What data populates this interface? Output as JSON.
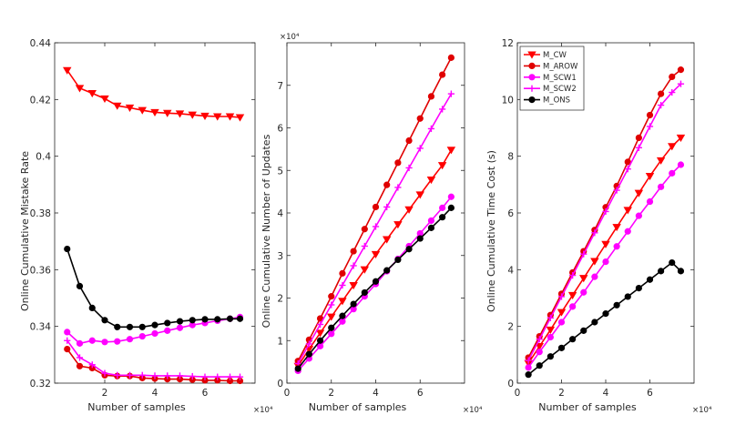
{
  "chart_data": [
    {
      "type": "line",
      "title": "",
      "xlabel": "Number of samples",
      "ylabel": "Online Cumulative Mistake Rate",
      "x_multiplier": "×10⁴",
      "y_multiplier": "",
      "xlim": [
        0,
        8
      ],
      "ylim": [
        0.32,
        0.44
      ],
      "xticks": [
        "2",
        "4",
        "6"
      ],
      "yticks": [
        "0.32",
        "0.34",
        "0.36",
        "0.38",
        "0.4",
        "0.42",
        "0.44"
      ],
      "x": [
        0.5,
        1.0,
        1.5,
        2.0,
        2.5,
        3.0,
        3.5,
        4.0,
        4.5,
        5.0,
        5.5,
        6.0,
        6.5,
        7.0,
        7.4
      ],
      "series": [
        {
          "name": "M_CW",
          "color": "#ff0000",
          "marker": "triangle-down",
          "values": [
            0.4303,
            0.424,
            0.4222,
            0.4203,
            0.4178,
            0.4171,
            0.4162,
            0.4155,
            0.4152,
            0.415,
            0.4146,
            0.4142,
            0.414,
            0.414,
            0.4137
          ]
        },
        {
          "name": "M_AROW",
          "color": "#e00000",
          "marker": "circle",
          "values": [
            0.332,
            0.326,
            0.3253,
            0.3228,
            0.3225,
            0.3225,
            0.3218,
            0.3216,
            0.3214,
            0.3214,
            0.3212,
            0.321,
            0.321,
            0.3208,
            0.3208
          ]
        },
        {
          "name": "M_SCW1",
          "color": "#ff00ff",
          "marker": "circle",
          "values": [
            0.338,
            0.334,
            0.335,
            0.3345,
            0.3347,
            0.3355,
            0.3365,
            0.3375,
            0.3385,
            0.3395,
            0.3405,
            0.3412,
            0.342,
            0.3427,
            0.3433
          ]
        },
        {
          "name": "M_SCW2",
          "color": "#ff00ff",
          "marker": "plus",
          "values": [
            0.335,
            0.329,
            0.3265,
            0.3235,
            0.3228,
            0.3228,
            0.3228,
            0.3226,
            0.3226,
            0.3226,
            0.3224,
            0.3222,
            0.3222,
            0.3222,
            0.3222
          ]
        },
        {
          "name": "M_ONS",
          "color": "#000000",
          "marker": "circle",
          "values": [
            0.3673,
            0.3542,
            0.3465,
            0.3422,
            0.3398,
            0.3398,
            0.3398,
            0.3405,
            0.3412,
            0.3418,
            0.3422,
            0.3425,
            0.3425,
            0.3427,
            0.3427
          ]
        }
      ],
      "legend": "none"
    },
    {
      "type": "line",
      "title": "",
      "xlabel": "Number of samples",
      "ylabel": "Online Cumulative Number of Updates",
      "x_multiplier": "×10⁴",
      "y_multiplier": "×10⁴",
      "xlim": [
        0,
        8
      ],
      "ylim": [
        0,
        8
      ],
      "xticks": [
        "0",
        "2",
        "4",
        "6"
      ],
      "yticks": [
        "0",
        "1",
        "2",
        "3",
        "4",
        "5",
        "6",
        "7"
      ],
      "x": [
        0.5,
        1.0,
        1.5,
        2.0,
        2.5,
        3.0,
        3.5,
        4.0,
        4.5,
        5.0,
        5.5,
        6.0,
        6.5,
        7.0,
        7.4
      ],
      "series": [
        {
          "name": "M_CW",
          "color": "#ff0000",
          "marker": "triangle-down",
          "values": [
            0.4,
            0.8,
            1.18,
            1.56,
            1.93,
            2.3,
            2.67,
            3.03,
            3.38,
            3.73,
            4.08,
            4.43,
            4.78,
            5.12,
            5.48
          ]
        },
        {
          "name": "M_AROW",
          "color": "#e00000",
          "marker": "circle",
          "values": [
            0.52,
            1.02,
            1.52,
            2.04,
            2.58,
            3.1,
            3.62,
            4.14,
            4.66,
            5.18,
            5.7,
            6.22,
            6.74,
            7.25,
            7.65
          ]
        },
        {
          "name": "M_SCW1",
          "color": "#ff00ff",
          "marker": "circle",
          "values": [
            0.29,
            0.58,
            0.87,
            1.16,
            1.45,
            1.74,
            2.04,
            2.33,
            2.63,
            2.92,
            3.22,
            3.52,
            3.82,
            4.12,
            4.38
          ]
        },
        {
          "name": "M_SCW2",
          "color": "#ff00ff",
          "marker": "plus",
          "values": [
            0.46,
            0.92,
            1.38,
            1.84,
            2.3,
            2.76,
            3.22,
            3.68,
            4.14,
            4.6,
            5.06,
            5.52,
            5.98,
            6.44,
            6.8
          ]
        },
        {
          "name": "M_ONS",
          "color": "#000000",
          "marker": "circle",
          "values": [
            0.34,
            0.68,
            1.0,
            1.3,
            1.58,
            1.86,
            2.13,
            2.39,
            2.65,
            2.9,
            3.15,
            3.4,
            3.65,
            3.9,
            4.12
          ]
        }
      ],
      "legend": "none"
    },
    {
      "type": "line",
      "title": "",
      "xlabel": "Number of samples",
      "ylabel": "Online Cumulative Time Cost (s)",
      "x_multiplier": "×10⁴",
      "y_multiplier": "",
      "xlim": [
        0,
        8
      ],
      "ylim": [
        0,
        12
      ],
      "xticks": [
        "0",
        "2",
        "4",
        "6"
      ],
      "yticks": [
        "0",
        "2",
        "4",
        "6",
        "8",
        "10",
        "12"
      ],
      "x": [
        0.5,
        1.0,
        1.5,
        2.0,
        2.5,
        3.0,
        3.5,
        4.0,
        4.5,
        5.0,
        5.5,
        6.0,
        6.5,
        7.0,
        7.4
      ],
      "series": [
        {
          "name": "M_CW",
          "color": "#ff0000",
          "marker": "triangle-down",
          "values": [
            0.7,
            1.3,
            1.88,
            2.5,
            3.1,
            3.7,
            4.3,
            4.9,
            5.5,
            6.1,
            6.7,
            7.3,
            7.85,
            8.35,
            8.65
          ]
        },
        {
          "name": "M_AROW",
          "color": "#e00000",
          "marker": "circle",
          "values": [
            0.9,
            1.65,
            2.4,
            3.15,
            3.9,
            4.65,
            5.4,
            6.2,
            6.95,
            7.8,
            8.65,
            9.45,
            10.2,
            10.8,
            11.05
          ]
        },
        {
          "name": "M_SCW1",
          "color": "#ff00ff",
          "marker": "circle",
          "values": [
            0.55,
            1.1,
            1.62,
            2.15,
            2.7,
            3.2,
            3.75,
            4.28,
            4.82,
            5.35,
            5.9,
            6.4,
            6.92,
            7.4,
            7.7
          ]
        },
        {
          "name": "M_SCW2",
          "color": "#ff00ff",
          "marker": "plus",
          "values": [
            0.8,
            1.55,
            2.3,
            3.05,
            3.8,
            4.55,
            5.3,
            6.05,
            6.8,
            7.55,
            8.3,
            9.05,
            9.8,
            10.25,
            10.55
          ]
        },
        {
          "name": "M_ONS",
          "color": "#000000",
          "marker": "circle",
          "values": [
            0.3,
            0.62,
            0.94,
            1.24,
            1.55,
            1.85,
            2.15,
            2.45,
            2.75,
            3.05,
            3.35,
            3.65,
            3.95,
            4.25,
            3.95
          ]
        }
      ],
      "legend": "top-left"
    }
  ]
}
